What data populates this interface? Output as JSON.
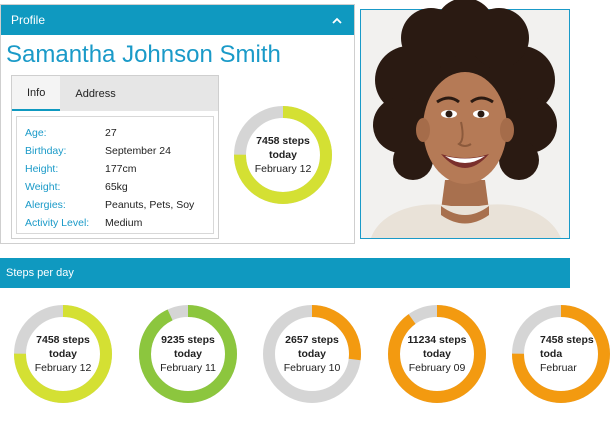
{
  "profile": {
    "panel_title": "Profile",
    "name": "Samantha Johnson Smith",
    "tabs": [
      {
        "label": "Info",
        "active": true
      },
      {
        "label": "Address",
        "active": false
      }
    ],
    "fields": [
      {
        "label": "Age:",
        "value": "27"
      },
      {
        "label": "Birthday:",
        "value": "September 24"
      },
      {
        "label": "Height:",
        "value": "177cm"
      },
      {
        "label": "Weight:",
        "value": "65kg"
      },
      {
        "label": "Alergies:",
        "value": "Peanuts, Pets, Soy"
      },
      {
        "label": "Activity Level:",
        "value": "Medium"
      }
    ],
    "today_summary": {
      "steps": "7458 steps",
      "today": "today",
      "date": "February 12",
      "fraction": 0.75,
      "color": "#d4e033"
    }
  },
  "steps_panel": {
    "title": "Steps per day",
    "days": [
      {
        "steps": "7458 steps",
        "today": "today",
        "date": "February 12",
        "fraction": 0.75,
        "color": "#d4e033"
      },
      {
        "steps": "9235 steps",
        "today": "today",
        "date": "February 11",
        "fraction": 0.93,
        "color": "#8cc63e"
      },
      {
        "steps": "2657 steps",
        "today": "today",
        "date": "February 10",
        "fraction": 0.27,
        "color": "#f39a10"
      },
      {
        "steps": "11234 steps",
        "today": "today",
        "date": "February 09",
        "fraction": 0.9,
        "color": "#f39a10"
      },
      {
        "steps": "7458 steps",
        "today": "toda",
        "date": "Februar",
        "fraction": 0.75,
        "color": "#f39a10"
      }
    ]
  },
  "colors": {
    "accent": "#0f99c0",
    "ring_track": "#d5d5d5"
  },
  "icons": {
    "collapse": "chevron-up-icon"
  }
}
